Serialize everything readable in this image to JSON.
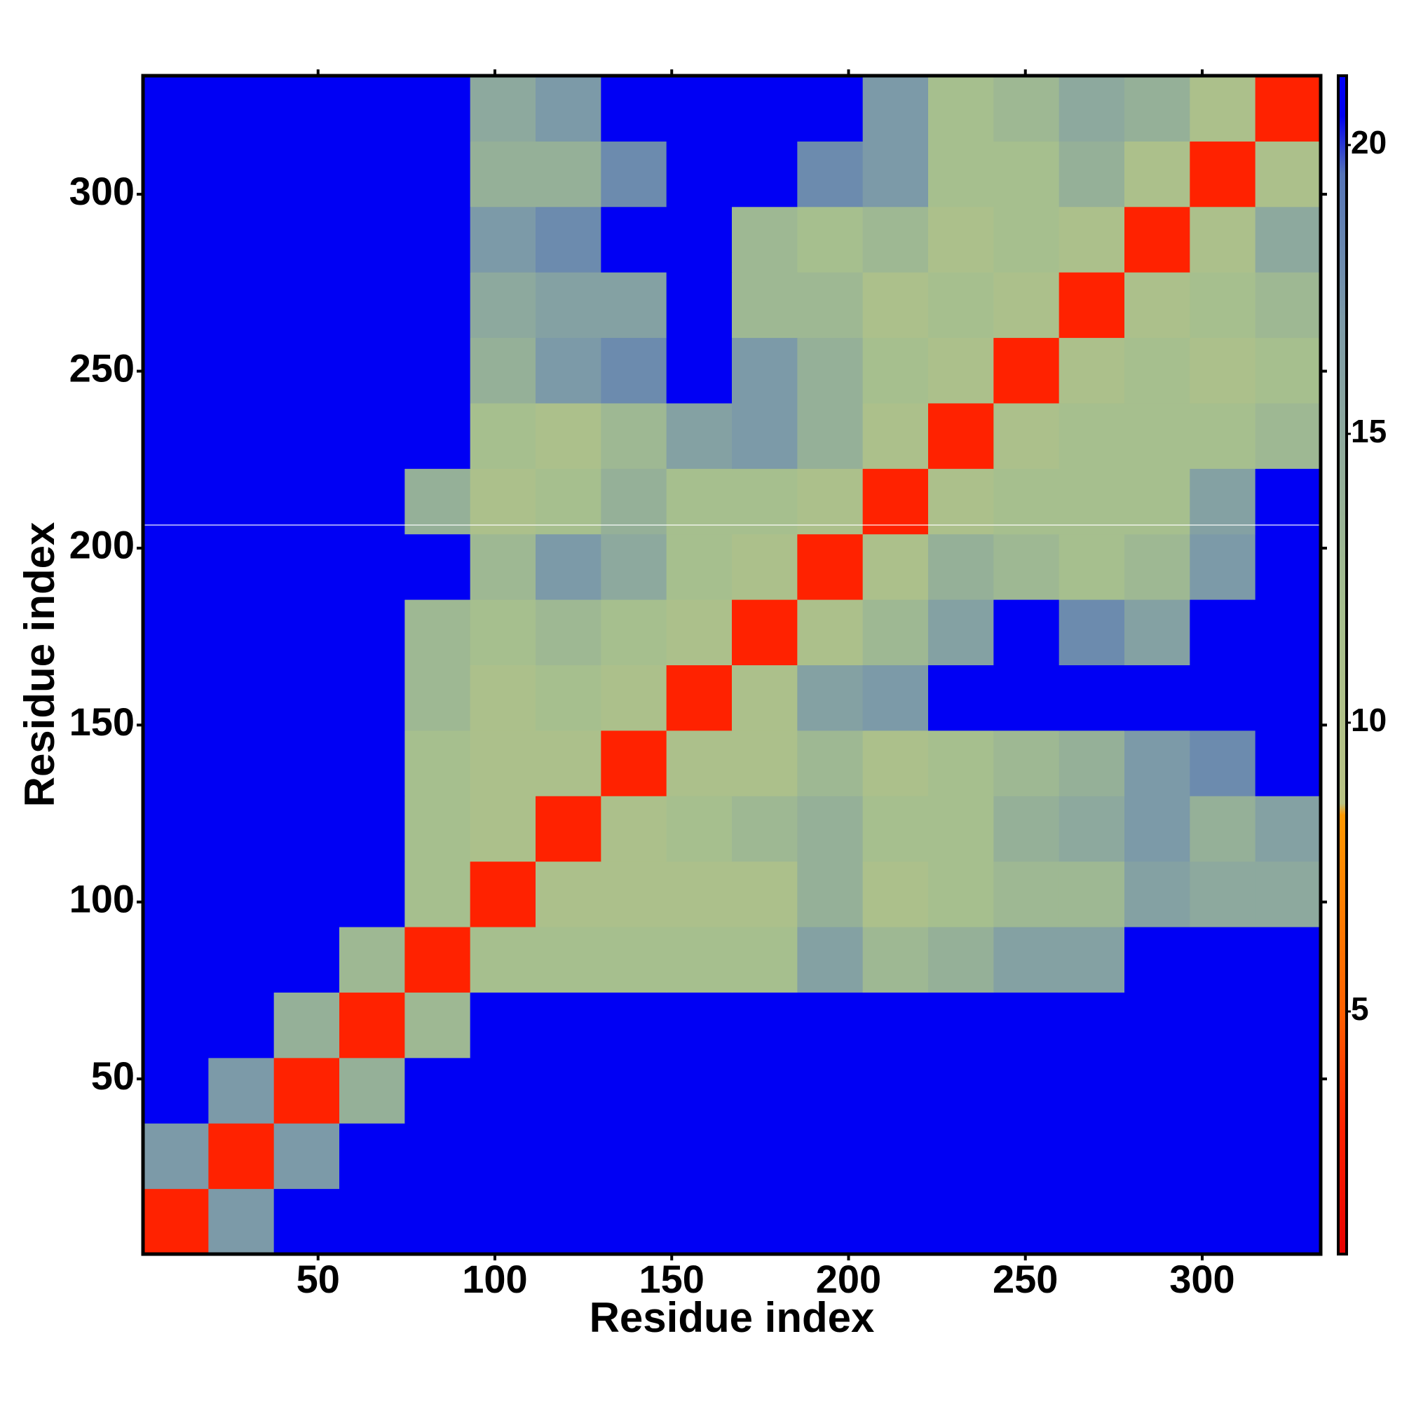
{
  "chart_data": {
    "type": "heatmap",
    "xlabel": "Residue index",
    "ylabel": "Residue index",
    "xbins": [
      0.5,
      19,
      37.5,
      56,
      74.5,
      93,
      111.5,
      130,
      148.5,
      167,
      185.5,
      204,
      222.5,
      241,
      259.5,
      278,
      296.5,
      315,
      333.5
    ],
    "ybins": [
      0.5,
      19,
      37.5,
      56,
      74.5,
      93,
      111.5,
      130,
      148.5,
      167,
      185.5,
      204,
      222.5,
      241,
      259.5,
      278,
      296.5,
      315,
      333.5
    ],
    "values": [
      [
        3,
        17,
        21,
        21,
        21,
        21,
        21,
        21,
        21,
        21,
        21,
        21,
        21,
        21,
        21,
        21,
        21,
        21
      ],
      [
        17,
        3,
        17,
        21,
        21,
        21,
        21,
        21,
        21,
        21,
        21,
        21,
        21,
        21,
        21,
        21,
        21,
        21
      ],
      [
        21,
        17,
        3,
        14,
        21,
        21,
        21,
        21,
        21,
        21,
        21,
        21,
        21,
        21,
        21,
        21,
        21,
        21
      ],
      [
        21,
        21,
        14,
        3,
        13,
        21,
        21,
        21,
        21,
        21,
        21,
        21,
        21,
        21,
        21,
        21,
        21,
        21
      ],
      [
        21,
        21,
        21,
        13,
        3,
        12,
        12,
        12,
        12,
        12,
        16,
        13,
        14,
        16,
        16,
        21,
        21,
        21
      ],
      [
        21,
        21,
        21,
        21,
        12,
        3,
        11,
        11,
        11,
        11,
        14,
        11,
        12,
        13,
        13,
        16,
        15,
        15
      ],
      [
        21,
        21,
        21,
        21,
        12,
        11,
        3,
        11,
        12,
        13,
        14,
        12,
        12,
        14,
        15,
        17,
        14,
        16
      ],
      [
        21,
        21,
        21,
        21,
        12,
        11,
        11,
        3,
        11,
        11,
        13,
        11,
        12,
        13,
        14,
        17,
        18,
        21
      ],
      [
        21,
        21,
        21,
        21,
        13,
        11,
        12,
        11,
        3,
        11,
        16,
        17,
        21,
        21,
        21,
        21,
        21,
        21
      ],
      [
        21,
        21,
        21,
        21,
        13,
        12,
        13,
        12,
        11,
        3,
        11,
        13,
        16,
        21,
        18,
        16,
        21,
        21
      ],
      [
        21,
        21,
        21,
        21,
        21,
        13,
        17,
        15,
        12,
        11,
        3,
        11,
        14,
        13,
        12,
        13,
        17,
        21
      ],
      [
        21,
        21,
        21,
        21,
        14,
        11,
        12,
        14,
        12,
        12,
        11,
        3,
        11,
        12,
        12,
        12,
        16,
        21
      ],
      [
        21,
        21,
        21,
        21,
        21,
        12,
        11,
        13,
        16,
        17,
        14,
        11,
        3,
        11,
        12,
        12,
        12,
        13
      ],
      [
        21,
        21,
        21,
        21,
        21,
        14,
        17,
        18,
        21,
        17,
        14,
        12,
        11,
        3,
        11,
        12,
        11,
        12
      ],
      [
        21,
        21,
        21,
        21,
        21,
        15,
        16,
        16,
        21,
        13,
        13,
        11,
        12,
        11,
        3,
        11,
        12,
        13
      ],
      [
        21,
        21,
        21,
        21,
        21,
        17,
        18,
        21,
        21,
        13,
        12,
        13,
        11,
        12,
        11,
        3,
        11,
        15
      ],
      [
        21,
        21,
        21,
        21,
        21,
        14,
        14,
        18,
        21,
        21,
        18,
        17,
        12,
        12,
        14,
        11,
        3,
        11
      ],
      [
        21,
        21,
        21,
        21,
        21,
        15,
        17,
        21,
        21,
        21,
        21,
        17,
        12,
        13,
        15,
        14,
        11,
        3
      ]
    ],
    "xlim": [
      0.5,
      333.5
    ],
    "ylim": [
      0.5,
      333.5
    ],
    "xticks": [
      50,
      100,
      150,
      200,
      250,
      300
    ],
    "yticks": [
      50,
      100,
      150,
      200,
      250,
      300
    ],
    "clim": [
      0.8,
      21.2
    ],
    "cticks": [
      5,
      10,
      15,
      20
    ],
    "colorscale": [
      [
        0.8,
        "#e60000"
      ],
      [
        3,
        "#ff2200"
      ],
      [
        5,
        "#ff6000"
      ],
      [
        8.4,
        "#ff9800"
      ],
      [
        8.6,
        "#b9c384"
      ],
      [
        12,
        "#a6bf8e"
      ],
      [
        17,
        "#7c9aa8"
      ],
      [
        19.5,
        "#5574b8"
      ],
      [
        20.5,
        "#0000f0"
      ],
      [
        21.2,
        "#0000f5"
      ]
    ]
  }
}
